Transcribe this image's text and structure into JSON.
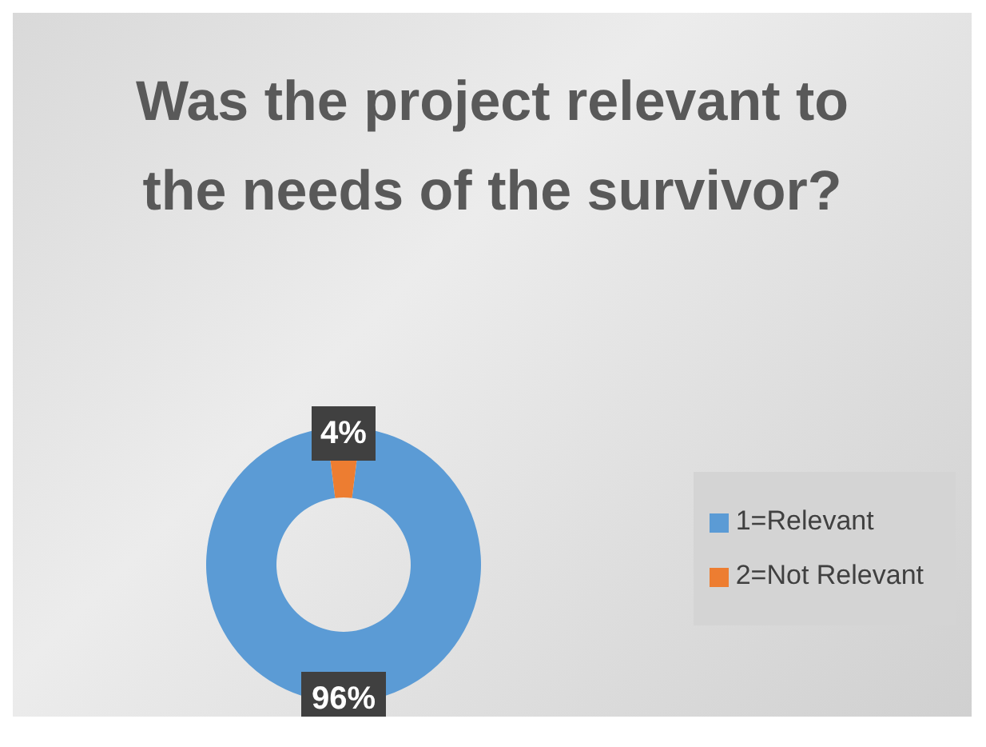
{
  "chart_data": {
    "type": "donut",
    "title": "Was the project relevant to the needs of the survivor?",
    "categories": [
      "1=Relevant",
      "2=Not Relevant"
    ],
    "values": [
      96,
      4
    ],
    "colors": [
      "#5b9bd5",
      "#ed7d31"
    ],
    "value_labels": [
      "96%",
      "4%"
    ],
    "legend": "right"
  }
}
